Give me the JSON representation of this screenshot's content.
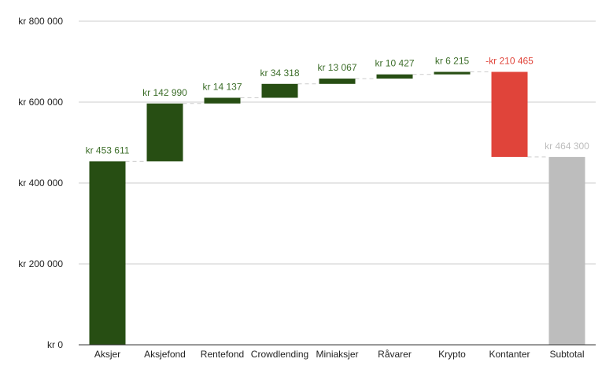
{
  "chart_data": {
    "type": "bar",
    "subtype": "waterfall",
    "title": "",
    "xlabel": "",
    "ylabel": "",
    "ylim": [
      0,
      800000
    ],
    "yticks": [
      0,
      200000,
      400000,
      600000,
      800000
    ],
    "ytick_labels": [
      "kr    0",
      "kr  200 000",
      "kr  400 000",
      "kr  600 000",
      "kr  800 000"
    ],
    "grid": true,
    "legend": "none",
    "categories": [
      "Aksjer",
      "Aksjefond",
      "Rentefond",
      "Crowdlending",
      "Miniaksjer",
      "Råvarer",
      "Krypto",
      "Kontanter",
      "Subtotal"
    ],
    "values": [
      453611,
      142990,
      14137,
      34318,
      13067,
      10427,
      6215,
      -210465,
      464300
    ],
    "value_labels": [
      "kr  453 611",
      "kr  142 990",
      "kr  14 137",
      "kr  34 318",
      "kr  13 067",
      "kr  10 427",
      "kr  6 215",
      "-kr  210 465",
      "kr  464 300"
    ],
    "kinds": [
      "increase",
      "increase",
      "increase",
      "increase",
      "increase",
      "increase",
      "increase",
      "decrease",
      "total"
    ],
    "colors": {
      "increase": "#274e13",
      "decrease": "#e0443a",
      "total": "#bdbdbd",
      "increase_label": "#3d6e2a",
      "decrease_label": "#e0443a",
      "total_label": "#bdbdbd",
      "grid": "#cccccc",
      "axis": "#333333"
    }
  }
}
